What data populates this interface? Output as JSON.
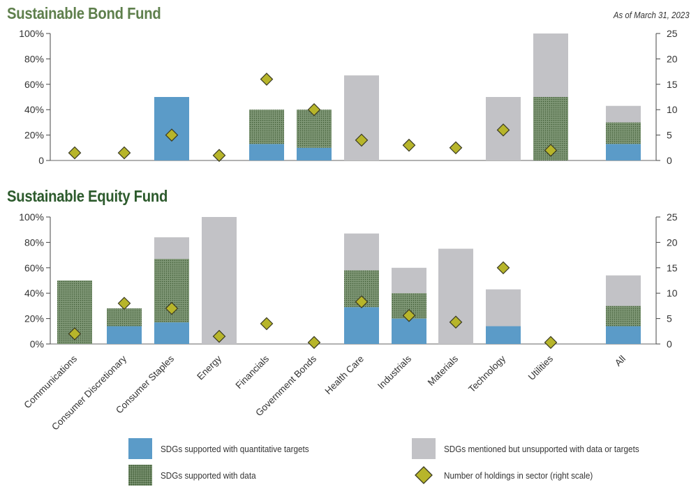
{
  "header": {
    "bond_title": "Sustainable Bond Fund",
    "equity_title": "Sustainable Equity Fund",
    "date": "As of March 31, 2023"
  },
  "legend": {
    "quant": "SDGs supported with quantitative targets",
    "data": "SDGs supported with data",
    "unsupported": "SDGs mentioned but unsupported with data or targets",
    "holdings": "Number of holdings in sector (right scale)"
  },
  "colors": {
    "quant": "#5b9bc8",
    "data_base": "#7f9776",
    "data_dot": "#3d5a33",
    "unsupported": "#c2c2c6",
    "diamond": "#b7b52a",
    "diamond_stroke": "#3a3a22"
  },
  "chart_data": [
    {
      "type": "bar",
      "stacked": true,
      "title": "Sustainable Bond Fund",
      "categories": [
        "Communications",
        "Consumer Discretionary",
        "Consumer Staples",
        "Energy",
        "Financials",
        "Government Bonds",
        "Health Care",
        "Industrials",
        "Materials",
        "Technology",
        "Utilities",
        "All"
      ],
      "series": [
        {
          "name": "SDGs supported with quantitative targets",
          "values": [
            0,
            0,
            50,
            0,
            13,
            10,
            0,
            0,
            0,
            0,
            0,
            13
          ]
        },
        {
          "name": "SDGs supported with data",
          "values": [
            0,
            0,
            0,
            0,
            27,
            30,
            0,
            0,
            0,
            0,
            50,
            17
          ]
        },
        {
          "name": "SDGs mentioned but unsupported with data or targets",
          "values": [
            0,
            0,
            0,
            0,
            0,
            0,
            67,
            0,
            0,
            50,
            50,
            13
          ]
        },
        {
          "name": "Number of holdings in sector (right scale)",
          "axis": "right",
          "values": [
            1.5,
            1.5,
            5,
            1,
            16,
            10,
            4,
            3,
            2.5,
            6,
            2,
            null
          ]
        }
      ],
      "left_axis": {
        "ticks": [
          "0",
          "20%",
          "40%",
          "60%",
          "80%",
          "100%"
        ],
        "ylim": [
          0,
          100
        ]
      },
      "right_axis": {
        "ticks": [
          "0",
          "5",
          "10",
          "15",
          "20",
          "25"
        ],
        "ylim": [
          0,
          25
        ]
      }
    },
    {
      "type": "bar",
      "stacked": true,
      "title": "Sustainable Equity Fund",
      "categories": [
        "Communications",
        "Consumer Discretionary",
        "Consumer Staples",
        "Energy",
        "Financials",
        "Government Bonds",
        "Health Care",
        "Industrials",
        "Materials",
        "Technology",
        "Utilities",
        "All"
      ],
      "series": [
        {
          "name": "SDGs supported with quantitative targets",
          "values": [
            0,
            14,
            17,
            0,
            0,
            0,
            29,
            20,
            0,
            14,
            0,
            14
          ]
        },
        {
          "name": "SDGs supported with data",
          "values": [
            50,
            14,
            50,
            0,
            0,
            0,
            29,
            20,
            0,
            0,
            0,
            16
          ]
        },
        {
          "name": "SDGs mentioned but unsupported with data or targets",
          "values": [
            0,
            0,
            17,
            100,
            0,
            0,
            29,
            20,
            75,
            29,
            0,
            24
          ]
        },
        {
          "name": "Number of holdings in sector (right scale)",
          "axis": "right",
          "values": [
            2,
            8,
            7,
            1.5,
            4,
            0.3,
            8.3,
            5.6,
            4.3,
            15,
            0.3,
            null
          ]
        }
      ],
      "left_axis": {
        "ticks": [
          "0%",
          "20%",
          "40%",
          "60%",
          "80%",
          "100%"
        ],
        "ylim": [
          0,
          100
        ]
      },
      "right_axis": {
        "ticks": [
          "0",
          "5",
          "10",
          "15",
          "20",
          "25"
        ],
        "ylim": [
          0,
          25
        ]
      }
    }
  ]
}
